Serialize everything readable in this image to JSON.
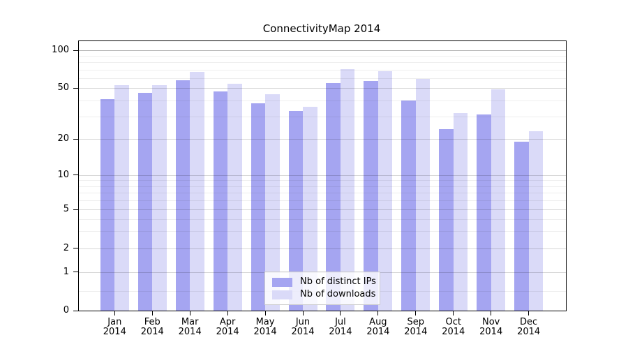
{
  "title": "ConnectivityMap 2014",
  "chart_data": {
    "type": "bar",
    "title": "ConnectivityMap 2014",
    "categories": [
      "Jan",
      "Feb",
      "Mar",
      "Apr",
      "May",
      "Jun",
      "Jul",
      "Aug",
      "Sep",
      "Oct",
      "Nov",
      "Dec"
    ],
    "x_sublabel": "2014",
    "series": [
      {
        "name": "Nb of distinct IPs",
        "color": "#a5a5f1",
        "values": [
          41,
          46,
          58,
          47,
          38,
          33,
          55,
          57,
          40,
          24,
          31,
          19
        ]
      },
      {
        "name": "Nb of downloads",
        "color": "#dadaf8",
        "values": [
          53,
          53,
          67,
          54,
          45,
          36,
          71,
          68,
          59,
          32,
          49,
          23
        ]
      }
    ],
    "yscale": "asinh-log",
    "ylim": [
      0,
      120
    ],
    "yticks": [
      100,
      50,
      20,
      10,
      5,
      2,
      1,
      0
    ],
    "yticks_minor": [
      90,
      80,
      70,
      60,
      40,
      30,
      9,
      8,
      7,
      6,
      4,
      3,
      0.5
    ],
    "xlabel": "",
    "ylabel": "",
    "grid": true,
    "legend_position": "lower center",
    "colors": {
      "axis": "#000000",
      "grid_major": "#d6d6d6",
      "grid_minor": "#efefef",
      "background": "#ffffff"
    }
  }
}
